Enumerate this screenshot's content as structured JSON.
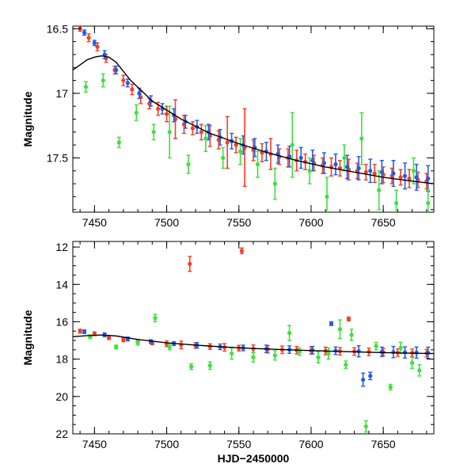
{
  "chart_data": [
    {
      "type": "scatter",
      "title": "",
      "xlabel": "",
      "ylabel": "Magnitude",
      "xlim": [
        7435,
        7685
      ],
      "ylim": [
        17.92,
        16.48
      ],
      "y_inverted": true,
      "x_ticks": [
        7450,
        7500,
        7550,
        7600,
        7650
      ],
      "y_ticks": [
        16.5,
        17,
        17.5
      ],
      "grid": false,
      "legend": "none",
      "series": [
        {
          "color": "#ff3b22",
          "x": [
            7440,
            7446,
            7452,
            7458,
            7464,
            7470,
            7476,
            7482,
            7488,
            7494,
            7500,
            7506,
            7512,
            7518,
            7524,
            7530,
            7536,
            7542,
            7548,
            7554,
            7560,
            7566,
            7572,
            7578,
            7584,
            7590,
            7596,
            7602,
            7608,
            7614,
            7620,
            7626,
            7632,
            7638,
            7644,
            7650,
            7656,
            7662,
            7668,
            7674,
            7680
          ],
          "y": [
            16.5,
            16.57,
            16.64,
            16.73,
            16.82,
            16.9,
            16.97,
            17.03,
            17.08,
            17.12,
            17.16,
            17.2,
            17.24,
            17.27,
            17.3,
            17.33,
            17.36,
            17.38,
            17.4,
            17.42,
            17.44,
            17.46,
            17.47,
            17.49,
            17.5,
            17.52,
            17.53,
            17.54,
            17.56,
            17.57,
            17.58,
            17.59,
            17.6,
            17.61,
            17.62,
            17.63,
            17.64,
            17.65,
            17.66,
            17.67,
            17.68
          ],
          "err": [
            0.02,
            0.03,
            0.03,
            0.03,
            0.03,
            0.04,
            0.04,
            0.05,
            0.04,
            0.05,
            0.06,
            0.15,
            0.07,
            0.05,
            0.06,
            0.08,
            0.07,
            0.2,
            0.06,
            0.3,
            0.08,
            0.07,
            0.12,
            0.06,
            0.07,
            0.08,
            0.06,
            0.06,
            0.06,
            0.07,
            0.06,
            0.08,
            0.06,
            0.06,
            0.07,
            0.06,
            0.06,
            0.06,
            0.07,
            0.06,
            0.06
          ]
        },
        {
          "color": "#1f5de6",
          "x": [
            7443,
            7450,
            7457,
            7465,
            7473,
            7481,
            7489,
            7497,
            7505,
            7513,
            7521,
            7529,
            7537,
            7545,
            7553,
            7561,
            7569,
            7577,
            7585,
            7593,
            7601,
            7609,
            7617,
            7625,
            7633,
            7641,
            7649,
            7657,
            7665,
            7673,
            7681
          ],
          "y": [
            16.53,
            16.61,
            16.7,
            16.82,
            16.92,
            17.0,
            17.06,
            17.12,
            17.17,
            17.22,
            17.26,
            17.3,
            17.34,
            17.37,
            17.4,
            17.42,
            17.45,
            17.47,
            17.49,
            17.5,
            17.52,
            17.54,
            17.55,
            17.57,
            17.58,
            17.6,
            17.61,
            17.62,
            17.64,
            17.65,
            17.66
          ],
          "err": [
            0.02,
            0.02,
            0.03,
            0.03,
            0.03,
            0.04,
            0.04,
            0.04,
            0.05,
            0.05,
            0.05,
            0.06,
            0.06,
            0.06,
            0.07,
            0.07,
            0.07,
            0.07,
            0.08,
            0.08,
            0.08,
            0.08,
            0.08,
            0.09,
            0.09,
            0.09,
            0.09,
            0.1,
            0.1,
            0.1,
            0.1
          ]
        },
        {
          "color": "#3ee03e",
          "x": [
            7444,
            7456,
            7467,
            7479,
            7491,
            7502,
            7515,
            7527,
            7539,
            7551,
            7563,
            7575,
            7587,
            7599,
            7611,
            7623,
            7635,
            7647,
            7659,
            7671,
            7681
          ],
          "y": [
            16.95,
            16.9,
            17.38,
            17.15,
            17.3,
            17.3,
            17.55,
            17.35,
            17.5,
            17.45,
            17.55,
            17.7,
            17.4,
            17.6,
            17.8,
            17.5,
            17.35,
            17.75,
            17.85,
            17.6,
            17.85
          ],
          "err": [
            0.04,
            0.05,
            0.04,
            0.06,
            0.06,
            0.2,
            0.07,
            0.1,
            0.08,
            0.1,
            0.1,
            0.12,
            0.25,
            0.1,
            0.15,
            0.1,
            0.2,
            0.15,
            0.1,
            0.1,
            0.1
          ]
        }
      ],
      "model_curve": {
        "color": "#000000",
        "x": [
          7435,
          7440,
          7445,
          7450,
          7455,
          7460,
          7465,
          7475,
          7490,
          7510,
          7530,
          7550,
          7570,
          7590,
          7610,
          7630,
          7650,
          7670,
          7685
        ],
        "y": [
          16.82,
          16.78,
          16.74,
          16.72,
          16.71,
          16.72,
          16.76,
          16.9,
          17.06,
          17.2,
          17.31,
          17.39,
          17.46,
          17.52,
          17.57,
          17.61,
          17.65,
          17.68,
          17.7
        ]
      }
    },
    {
      "type": "scatter",
      "title": "",
      "xlabel": "HJD−2450000",
      "ylabel": "Magnitude",
      "xlim": [
        7435,
        7685
      ],
      "ylim": [
        22,
        11.7
      ],
      "y_inverted": true,
      "x_ticks": [
        7450,
        7500,
        7550,
        7600,
        7650
      ],
      "y_ticks": [
        12,
        14,
        16,
        18,
        20,
        22
      ],
      "grid": false,
      "legend": "none",
      "series": [
        {
          "color": "#ff3b22",
          "x": [
            7440,
            7450,
            7460,
            7470,
            7480,
            7490,
            7500,
            7510,
            7516,
            7520,
            7530,
            7540,
            7550,
            7552,
            7560,
            7570,
            7580,
            7590,
            7600,
            7610,
            7620,
            7626,
            7630,
            7640,
            7650,
            7660,
            7670,
            7680
          ],
          "y": [
            16.5,
            16.64,
            16.85,
            16.97,
            17.06,
            17.13,
            17.18,
            17.24,
            12.9,
            17.27,
            17.33,
            17.37,
            17.41,
            12.2,
            17.44,
            17.47,
            17.5,
            17.52,
            17.54,
            17.56,
            17.58,
            15.85,
            17.59,
            17.61,
            17.63,
            17.65,
            17.66,
            17.68
          ],
          "err": [
            0.1,
            0.1,
            0.1,
            0.1,
            0.1,
            0.1,
            0.15,
            0.2,
            0.4,
            0.15,
            0.15,
            0.2,
            0.15,
            0.15,
            0.2,
            0.2,
            0.2,
            0.2,
            0.2,
            0.2,
            0.2,
            0.1,
            0.2,
            0.2,
            0.2,
            0.2,
            0.2,
            0.2
          ]
        },
        {
          "color": "#1f5de6",
          "x": [
            7443,
            7457,
            7473,
            7489,
            7505,
            7521,
            7537,
            7553,
            7569,
            7585,
            7601,
            7614,
            7617,
            7633,
            7636,
            7641,
            7649,
            7657,
            7665,
            7673,
            7681
          ],
          "y": [
            16.53,
            16.7,
            16.92,
            17.06,
            17.17,
            17.26,
            17.34,
            17.4,
            17.45,
            17.49,
            17.52,
            16.1,
            17.55,
            17.58,
            19.1,
            18.9,
            17.61,
            17.62,
            17.64,
            17.65,
            17.66
          ],
          "err": [
            0.1,
            0.1,
            0.1,
            0.1,
            0.1,
            0.15,
            0.15,
            0.15,
            0.2,
            0.2,
            0.2,
            0.1,
            0.2,
            0.3,
            0.35,
            0.2,
            0.25,
            0.3,
            0.3,
            0.3,
            0.3
          ]
        },
        {
          "color": "#3ee03e",
          "x": [
            7447,
            7465,
            7480,
            7492,
            7502,
            7517,
            7530,
            7545,
            7560,
            7575,
            7585,
            7592,
            7605,
            7612,
            7620,
            7624,
            7628,
            7638,
            7645,
            7655,
            7662,
            7670,
            7675
          ],
          "y": [
            16.8,
            17.35,
            17.1,
            15.8,
            17.35,
            18.4,
            18.35,
            17.7,
            17.9,
            17.8,
            16.6,
            17.6,
            17.9,
            17.7,
            16.4,
            18.3,
            16.7,
            21.6,
            17.3,
            19.5,
            17.4,
            18.2,
            18.6
          ],
          "err": [
            0.1,
            0.1,
            0.15,
            0.2,
            0.15,
            0.15,
            0.2,
            0.3,
            0.25,
            0.25,
            0.4,
            0.2,
            0.3,
            0.3,
            0.5,
            0.2,
            0.3,
            0.3,
            0.2,
            0.15,
            0.3,
            0.3,
            0.3
          ]
        }
      ],
      "model_curve": {
        "color": "#000000",
        "x": [
          7435,
          7445,
          7455,
          7465,
          7480,
          7500,
          7520,
          7540,
          7560,
          7580,
          7600,
          7620,
          7640,
          7660,
          7685
        ],
        "y": [
          16.8,
          16.74,
          16.71,
          16.76,
          16.95,
          17.13,
          17.25,
          17.35,
          17.43,
          17.49,
          17.54,
          17.59,
          17.63,
          17.67,
          17.7
        ]
      }
    }
  ]
}
